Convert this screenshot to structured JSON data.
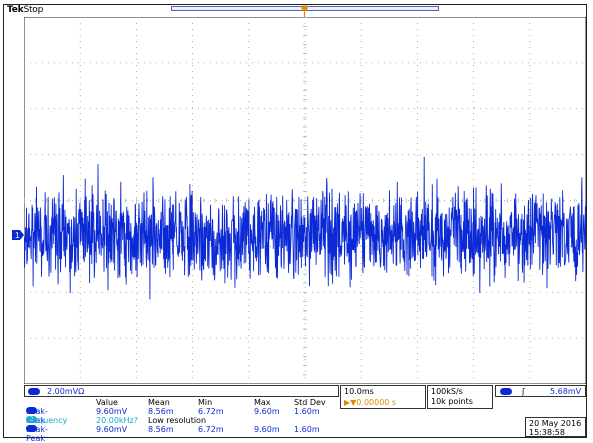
{
  "header": {
    "brand": "Tek",
    "status": "Stop"
  },
  "colors": {
    "trace": "#0b2ad6",
    "grid": "#9a9a9a",
    "trigger_marker": "#e08a00",
    "frequency": "#1aa9c9"
  },
  "channel": {
    "marker": "1",
    "scale": "2.00mV",
    "bandwidth_symbol": "Ω"
  },
  "measurements": {
    "headers": [
      "",
      "Value",
      "Mean",
      "Min",
      "Max",
      "Std Dev"
    ],
    "rows": [
      {
        "label": "Peak-Peak",
        "value": "9.60mV",
        "mean": "8.56m",
        "min": "6.72m",
        "max": "9.60m",
        "std": "1.60m",
        "color": "blue"
      },
      {
        "label": "Frequency",
        "value": "20.00kHz?",
        "note": "Low resolution",
        "color": "cyan"
      },
      {
        "label": "Peak-Peak",
        "value": "9.60mV",
        "mean": "8.56m",
        "min": "6.72m",
        "max": "9.60m",
        "std": "1.60m",
        "color": "blue"
      }
    ]
  },
  "timebase": {
    "scale": "10.0ms",
    "position": "▶▼0.00000 s"
  },
  "acquisition": {
    "rate": "100kS/s",
    "length": "10k points"
  },
  "trigger": {
    "source": "1",
    "edge": "ʃ",
    "level": "5.68mV"
  },
  "datetime": {
    "date": "20 May 2016",
    "time": "15:38:58"
  }
}
